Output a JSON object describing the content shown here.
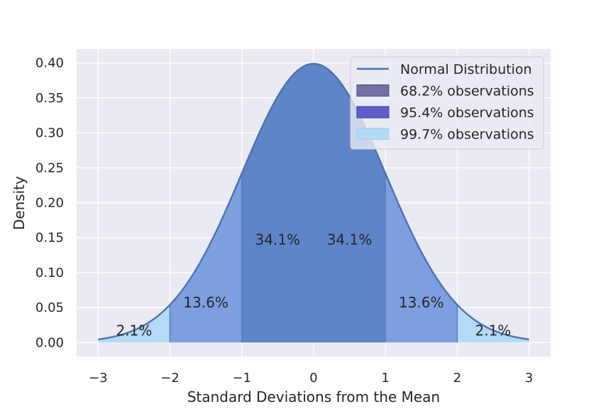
{
  "chart_data": {
    "type": "area",
    "xlabel": "Standard Deviations from the Mean",
    "ylabel": "Density",
    "xlim": [
      -3.3,
      3.3
    ],
    "ylim": [
      -0.02,
      0.42
    ],
    "x_ticks": [
      {
        "value": -3,
        "label": "−3"
      },
      {
        "value": -2,
        "label": "−2"
      },
      {
        "value": -1,
        "label": "−1"
      },
      {
        "value": 0,
        "label": "0"
      },
      {
        "value": 1,
        "label": "1"
      },
      {
        "value": 2,
        "label": "2"
      },
      {
        "value": 3,
        "label": "3"
      }
    ],
    "y_ticks": [
      {
        "value": 0.0,
        "label": "0.00"
      },
      {
        "value": 0.05,
        "label": "0.05"
      },
      {
        "value": 0.1,
        "label": "0.10"
      },
      {
        "value": 0.15,
        "label": "0.15"
      },
      {
        "value": 0.2,
        "label": "0.20"
      },
      {
        "value": 0.25,
        "label": "0.25"
      },
      {
        "value": 0.3,
        "label": "0.30"
      },
      {
        "value": 0.35,
        "label": "0.35"
      },
      {
        "value": 0.4,
        "label": "0.40"
      }
    ],
    "curve": {
      "name": "Normal Distribution",
      "mean": 0,
      "sd": 1,
      "x_range": [
        -3,
        3
      ]
    },
    "regions": [
      {
        "name": "99.7% observations",
        "range": [
          -3,
          3
        ]
      },
      {
        "name": "95.4% observations",
        "range": [
          -2,
          2
        ]
      },
      {
        "name": "68.2% observations",
        "range": [
          -1,
          1
        ]
      }
    ],
    "annotations": [
      {
        "text": "34.1%",
        "x": -0.5,
        "y": 0.14
      },
      {
        "text": "34.1%",
        "x": 0.5,
        "y": 0.14
      },
      {
        "text": "13.6%",
        "x": -1.5,
        "y": 0.05
      },
      {
        "text": "13.6%",
        "x": 1.5,
        "y": 0.05
      },
      {
        "text": "2.1%",
        "x": -2.5,
        "y": 0.01
      },
      {
        "text": "2.1%",
        "x": 2.5,
        "y": 0.01
      }
    ],
    "legend": {
      "position": "top-right",
      "entries": [
        {
          "label": "Normal Distribution",
          "kind": "line",
          "color": "#4c72b0"
        },
        {
          "label": "68.2% observations",
          "kind": "patch",
          "color": "#726fa5",
          "edge": "#4c4a86"
        },
        {
          "label": "95.4% observations",
          "kind": "patch",
          "color": "#5e5ec9",
          "edge": "#3b3bb0"
        },
        {
          "label": "99.7% observations",
          "kind": "patch",
          "color": "#b3dbf6",
          "edge": "#9fd0f3"
        }
      ]
    },
    "colors": {
      "background": "#eaeaf2",
      "grid": "#ffffff",
      "line": "#4c72b0",
      "fill_outer": "#b3dbf6",
      "fill_mid": "#7e9fdf",
      "fill_inner": "#5f85c9",
      "region_edge": "#5a80c2"
    }
  }
}
